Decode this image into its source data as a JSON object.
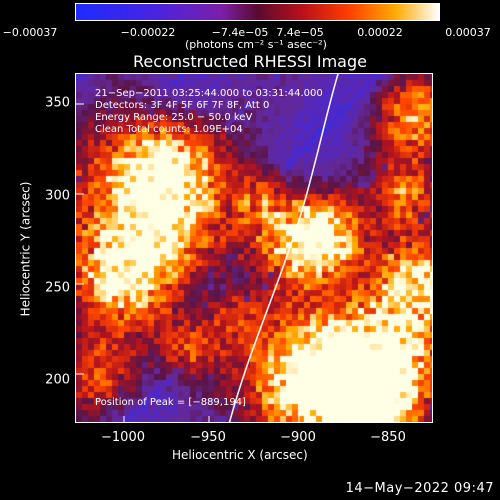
{
  "colorbar": {
    "ticks": [
      "−0.00037",
      "−0.00022",
      "−7.4e−05",
      "7.4e−05",
      "0.00022",
      "0.00037"
    ],
    "units": "(photons cm⁻² s⁻¹ asec⁻²)",
    "colors": [
      "#1e2bff",
      "#5b22d0",
      "#8b1f9e",
      "#c0161a",
      "#ff4a00",
      "#ffb000",
      "#ffffff"
    ]
  },
  "plot": {
    "title": "Reconstructed RHESSI Image",
    "xlabel": "Heliocentric X (arcsec)",
    "ylabel": "Heliocentric Y (arcsec)",
    "xticks": [
      "−1000",
      "−950",
      "−900",
      "−850"
    ],
    "yticks": [
      "350",
      "300",
      "250",
      "200"
    ],
    "x_range": [
      -1025,
      -835
    ],
    "y_range": [
      175,
      370
    ],
    "info": {
      "line1": "21−Sep−2011 03:25:44.000 to 03:31:44.000",
      "line2": "Detectors: 3F 4F 5F 6F 7F 8F, Att 0",
      "line3": "Energy Range: 25.0 − 50.0 keV",
      "line4": "Clean     Total counts: 1.09E+04"
    },
    "peak": "Position of Peak = [−889,194]"
  },
  "timestamp": "14−May−2022 09:47"
}
